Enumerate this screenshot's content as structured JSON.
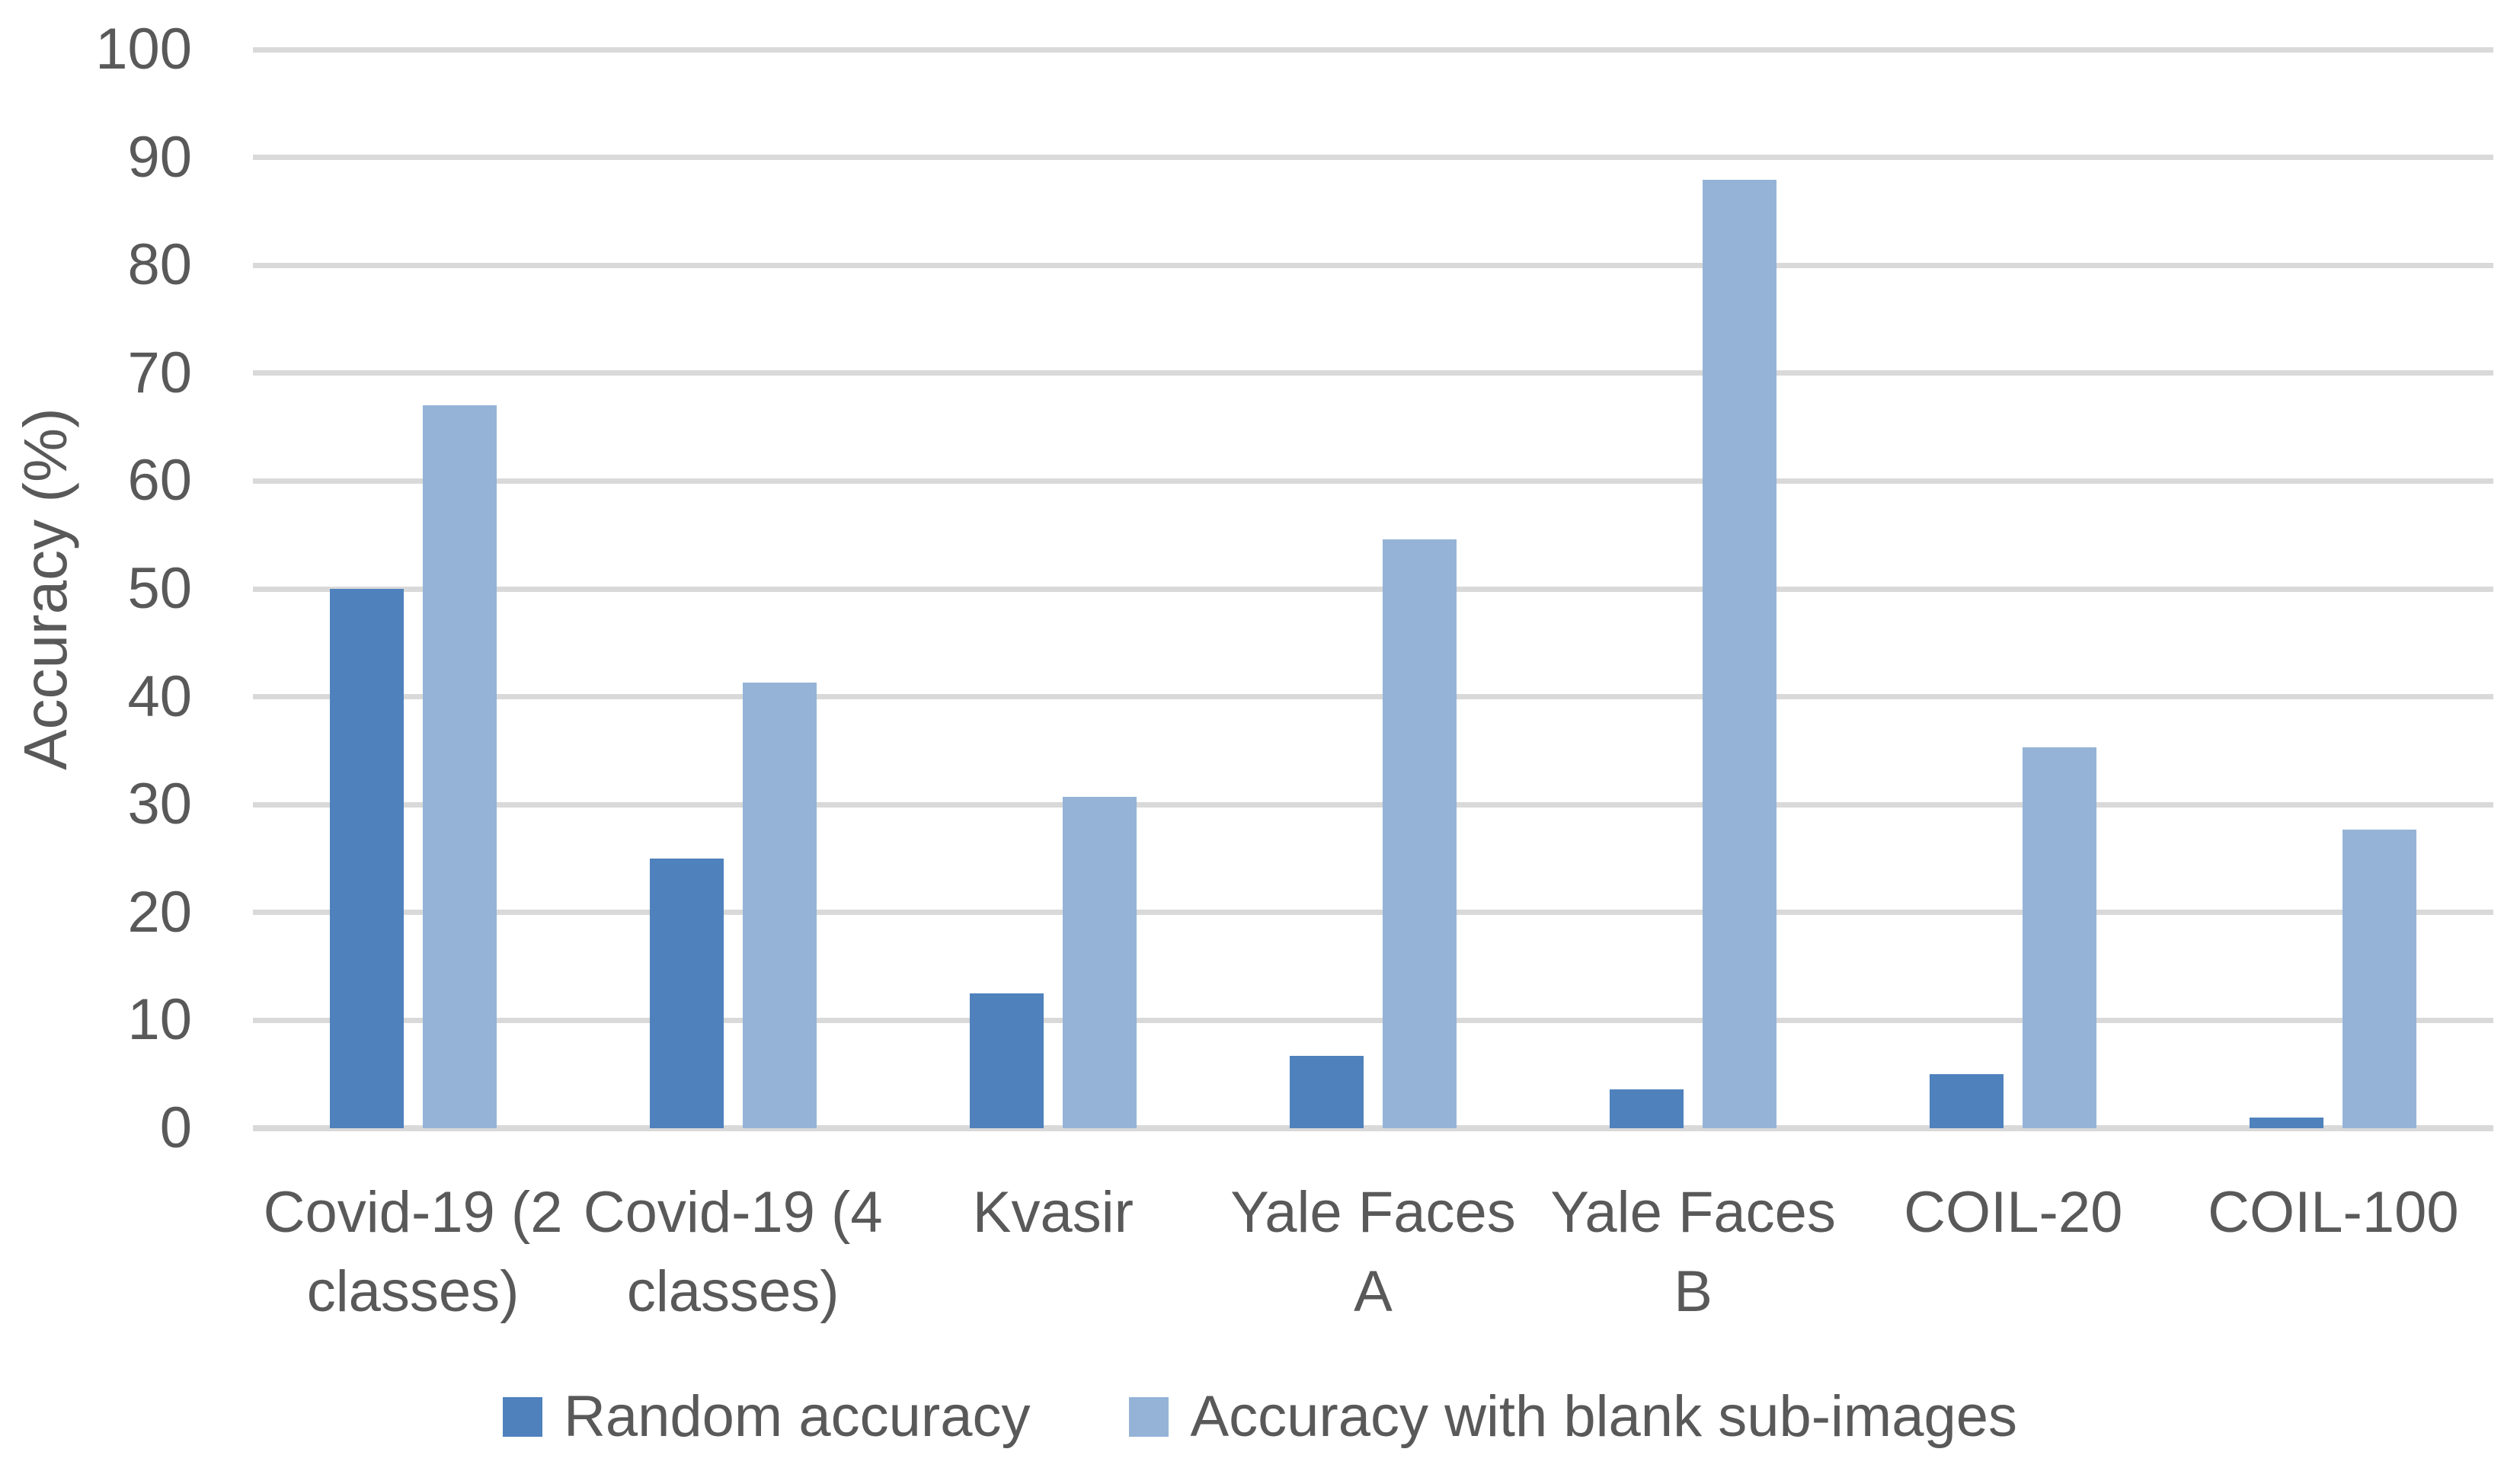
{
  "chart_data": {
    "type": "bar",
    "title": "",
    "xlabel": "",
    "ylabel": "Accuracy (%)",
    "ylim": [
      0,
      100
    ],
    "yticks": [
      0,
      10,
      20,
      30,
      40,
      50,
      60,
      70,
      80,
      90,
      100
    ],
    "grid": true,
    "legend_position": "bottom",
    "categories": [
      "Covid-19 (2 classes)",
      "Covid-19 (4 classes)",
      "Kvasir",
      "Yale Faces A",
      "Yale Faces B",
      "COIL-20",
      "COIL-100"
    ],
    "series": [
      {
        "name": "Random accuracy",
        "color": "#4F81BD",
        "values": [
          50,
          25,
          12.5,
          6.7,
          3.6,
          5,
          1
        ]
      },
      {
        "name": "Accuracy with blank sub-images",
        "color": "#95B3D7",
        "values": [
          67,
          41.3,
          30.7,
          54.6,
          87.9,
          35.3,
          27.7
        ]
      }
    ]
  },
  "colors": {
    "text": "#595959",
    "gridline": "#D9D9D9",
    "background": "#FFFFFF"
  }
}
